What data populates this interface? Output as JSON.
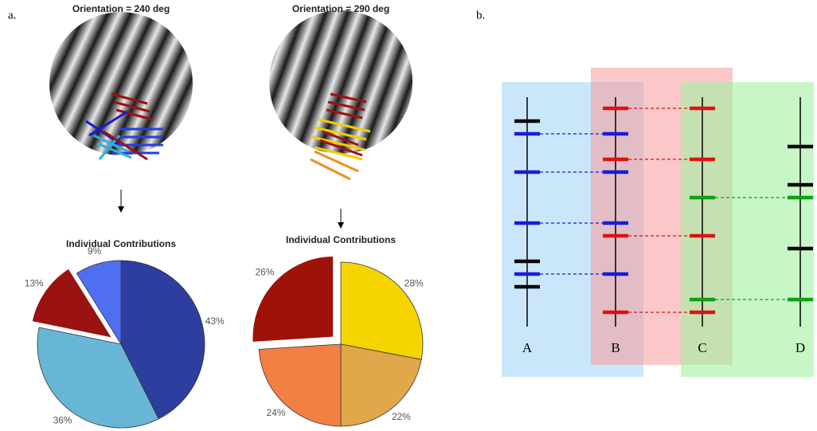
{
  "panel_labels": [
    "a.",
    "b."
  ],
  "diagram": {
    "columns": [
      "A",
      "B",
      "C",
      "D"
    ]
  },
  "chart_data": [
    {
      "type": "pie",
      "heading": "Orientation = 240 deg",
      "title": "Individual Contributions",
      "values": [
        43,
        36,
        13,
        9
      ],
      "value_labels": [
        "43%",
        "36%",
        "13%",
        "9%"
      ],
      "colors": [
        "#2e3da0",
        "#68b6d6",
        "#9a1212",
        "#4f6ff2"
      ],
      "explode": [
        false,
        false,
        true,
        false
      ]
    },
    {
      "type": "pie",
      "heading": "Orientation = 290 deg",
      "title": "Individual Contributions",
      "values": [
        28,
        22,
        24,
        26
      ],
      "value_labels": [
        "28%",
        "22%",
        "24%",
        "26%"
      ],
      "colors": [
        "#f6d400",
        "#e0a84a",
        "#f28044",
        "#9e1208"
      ],
      "explode": [
        false,
        false,
        false,
        true
      ]
    }
  ]
}
